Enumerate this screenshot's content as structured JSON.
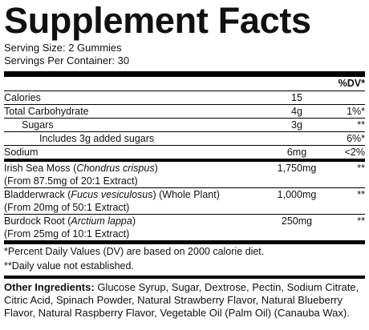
{
  "title": "Supplement Facts",
  "serving_size": "Serving Size: 2 Gummies",
  "servings_per_container": "Servings Per Container: 30",
  "dv_header": "%DV*",
  "sections": [
    {
      "rows": [
        {
          "name": [
            {
              "text": "Calories"
            }
          ],
          "amount": "15"
        },
        {
          "name": [
            {
              "text": "Total Carbohydrate"
            }
          ],
          "amount": "4g",
          "dv": "1%*"
        },
        {
          "name": [
            {
              "text": "Sugars"
            }
          ],
          "amount": "3g",
          "dv": "**",
          "indent": 1
        },
        {
          "name": [
            {
              "text": "Includes 3g added sugars"
            }
          ],
          "dv": "6%*",
          "indent": 2
        },
        {
          "name": [
            {
              "text": "Sodium"
            }
          ],
          "amount": "6mg",
          "dv": "<2%"
        }
      ]
    },
    {
      "rows": [
        {
          "name": [
            {
              "text": "Irish Sea Moss ("
            },
            {
              "text": "Chondrus crispus",
              "italic": true
            },
            {
              "text": ")"
            }
          ],
          "sub": "(From 87.5mg of 20:1 Extract)",
          "amount": "1,750mg",
          "dv": "**"
        },
        {
          "name": [
            {
              "text": "Bladderwrack ("
            },
            {
              "text": "Fucus vesiculosus",
              "italic": true
            },
            {
              "text": ") (Whole Plant)"
            }
          ],
          "sub": "(From 20mg of 50:1 Extract)",
          "amount": "1,000mg",
          "dv": "**"
        },
        {
          "name": [
            {
              "text": "Burdock Root ("
            },
            {
              "text": "Arctium lappa",
              "italic": true
            },
            {
              "text": ")"
            }
          ],
          "sub": "(From 25mg of 10:1 Extract)",
          "amount": "250mg",
          "dv": "**"
        }
      ]
    }
  ],
  "footnotes": [
    "*Percent Daily Values (DV) are based on 2000 calorie diet.",
    "**Daily value not established."
  ],
  "other_ingredients": {
    "label": "Other Ingredients:",
    "text": "Glucose Syrup, Sugar, Dextrose, Pectin, Sodium Citrate, Citric Acid, Spinach Powder, Natural Strawberry Flavor, Natural Blueberry Flavor, Natural Raspberry Flavor, Vegetable Oil (Palm Oil) (Canauba Wax)."
  }
}
